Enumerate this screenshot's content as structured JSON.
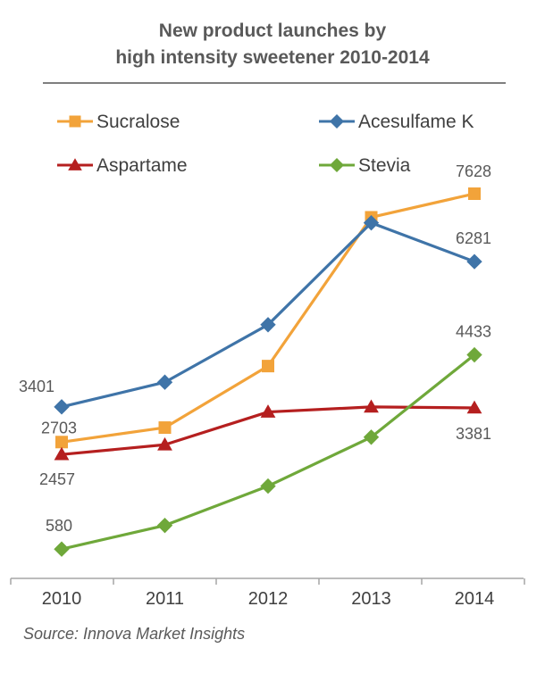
{
  "chart_data": {
    "type": "line",
    "title": "New product launches by high intensity sweetener 2010-2014",
    "title_lines": [
      "New product launches by",
      "high intensity sweetener 2010-2014"
    ],
    "categories": [
      "2010",
      "2011",
      "2012",
      "2013",
      "2014"
    ],
    "series": [
      {
        "name": "Sucralose",
        "color": "#F2A33A",
        "marker": "square",
        "values": [
          2703,
          2990,
          4210,
          7160,
          7628
        ]
      },
      {
        "name": "Acesulfame K",
        "color": "#3F74A8",
        "marker": "diamond",
        "values": [
          3401,
          3890,
          5030,
          7050,
          6281
        ]
      },
      {
        "name": "Aspartame",
        "color": "#B51F1F",
        "marker": "triangle",
        "values": [
          2457,
          2650,
          3300,
          3400,
          3381
        ]
      },
      {
        "name": "Stevia",
        "color": "#6FA83A",
        "marker": "diamond",
        "values": [
          580,
          1050,
          1830,
          2800,
          4433
        ]
      }
    ],
    "data_labels": [
      {
        "series": "Acesulfame K",
        "index": 0,
        "text": "3401"
      },
      {
        "series": "Sucralose",
        "index": 0,
        "text": "2703"
      },
      {
        "series": "Aspartame",
        "index": 0,
        "text": "2457"
      },
      {
        "series": "Stevia",
        "index": 0,
        "text": "580"
      },
      {
        "series": "Sucralose",
        "index": 4,
        "text": "7628"
      },
      {
        "series": "Acesulfame K",
        "index": 4,
        "text": "6281"
      },
      {
        "series": "Stevia",
        "index": 4,
        "text": "4433"
      },
      {
        "series": "Aspartame",
        "index": 4,
        "text": "3381"
      }
    ],
    "ylim": [
      0,
      8500
    ],
    "grid": false,
    "legend": "top"
  },
  "source": "Source: Innova Market Insights"
}
